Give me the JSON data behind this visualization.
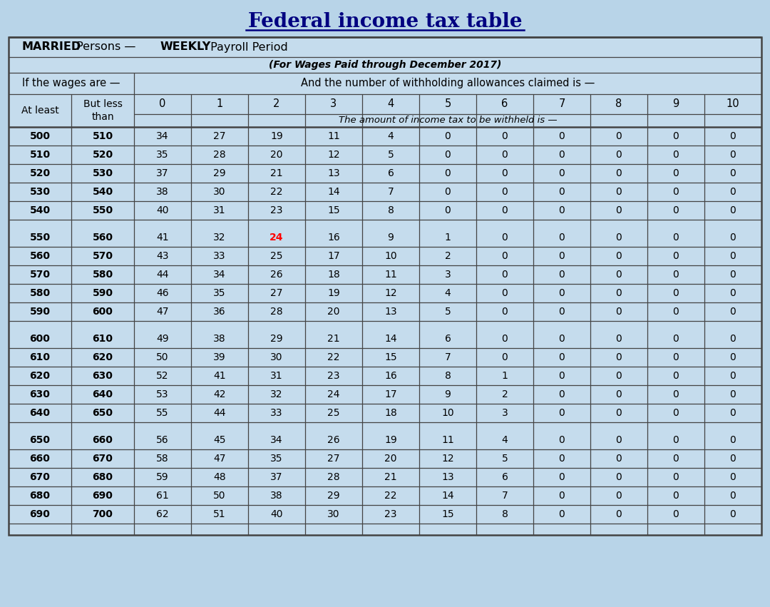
{
  "title": "Federal income tax table",
  "subtitle1_bold1": "MARRIED",
  "subtitle1_normal1": " Persons — ",
  "subtitle1_bold2": "WEEKLY",
  "subtitle1_normal2": " Payroll Period",
  "subtitle2": "(For Wages Paid through December 2017)",
  "header1": "If the wages are —",
  "header2": "And the number of withholding allowances claimed is —",
  "col_headers": [
    "0",
    "1",
    "2",
    "3",
    "4",
    "5",
    "6",
    "7",
    "8",
    "9",
    "10"
  ],
  "row_header1": "At least",
  "row_header2": "But less\nthan",
  "amount_header": "The amount of income tax to be withheld is —",
  "background_color": "#b8d4e8",
  "table_bg": "#c5dced",
  "border_color": "#444444",
  "title_color": "#000080",
  "rows": [
    [
      500,
      510,
      34,
      27,
      19,
      11,
      4,
      0,
      0,
      0,
      0,
      0,
      0
    ],
    [
      510,
      520,
      35,
      28,
      20,
      12,
      5,
      0,
      0,
      0,
      0,
      0,
      0
    ],
    [
      520,
      530,
      37,
      29,
      21,
      13,
      6,
      0,
      0,
      0,
      0,
      0,
      0
    ],
    [
      530,
      540,
      38,
      30,
      22,
      14,
      7,
      0,
      0,
      0,
      0,
      0,
      0
    ],
    [
      540,
      550,
      40,
      31,
      23,
      15,
      8,
      0,
      0,
      0,
      0,
      0,
      0
    ],
    [
      550,
      560,
      41,
      32,
      24,
      16,
      9,
      1,
      0,
      0,
      0,
      0,
      0
    ],
    [
      560,
      570,
      43,
      33,
      25,
      17,
      10,
      2,
      0,
      0,
      0,
      0,
      0
    ],
    [
      570,
      580,
      44,
      34,
      26,
      18,
      11,
      3,
      0,
      0,
      0,
      0,
      0
    ],
    [
      580,
      590,
      46,
      35,
      27,
      19,
      12,
      4,
      0,
      0,
      0,
      0,
      0
    ],
    [
      590,
      600,
      47,
      36,
      28,
      20,
      13,
      5,
      0,
      0,
      0,
      0,
      0
    ],
    [
      600,
      610,
      49,
      38,
      29,
      21,
      14,
      6,
      0,
      0,
      0,
      0,
      0
    ],
    [
      610,
      620,
      50,
      39,
      30,
      22,
      15,
      7,
      0,
      0,
      0,
      0,
      0
    ],
    [
      620,
      630,
      52,
      41,
      31,
      23,
      16,
      8,
      1,
      0,
      0,
      0,
      0
    ],
    [
      630,
      640,
      53,
      42,
      32,
      24,
      17,
      9,
      2,
      0,
      0,
      0,
      0
    ],
    [
      640,
      650,
      55,
      44,
      33,
      25,
      18,
      10,
      3,
      0,
      0,
      0,
      0
    ],
    [
      650,
      660,
      56,
      45,
      34,
      26,
      19,
      11,
      4,
      0,
      0,
      0,
      0
    ],
    [
      660,
      670,
      58,
      47,
      35,
      27,
      20,
      12,
      5,
      0,
      0,
      0,
      0
    ],
    [
      670,
      680,
      59,
      48,
      37,
      28,
      21,
      13,
      6,
      0,
      0,
      0,
      0
    ],
    [
      680,
      690,
      61,
      50,
      38,
      29,
      22,
      14,
      7,
      0,
      0,
      0,
      0
    ],
    [
      690,
      700,
      62,
      51,
      40,
      30,
      23,
      15,
      8,
      0,
      0,
      0,
      0
    ]
  ],
  "red_cell_row": 5,
  "red_cell_col": 2,
  "group_size": 5,
  "font_size_title": 20,
  "font_size_header": 11,
  "font_size_data": 10
}
